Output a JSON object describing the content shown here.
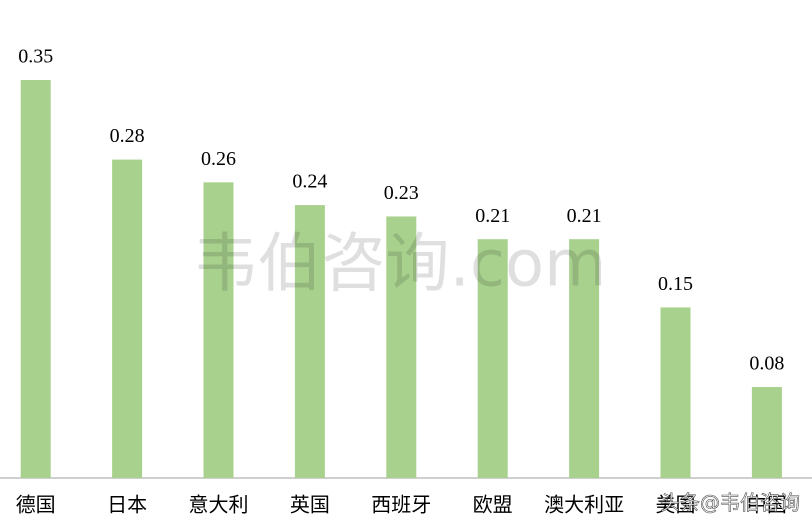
{
  "chart_data": {
    "type": "bar",
    "categories": [
      "德国",
      "日本",
      "意大利",
      "英国",
      "西班牙",
      "欧盟",
      "澳大利亚",
      "美国",
      "中国"
    ],
    "values": [
      0.35,
      0.28,
      0.26,
      0.24,
      0.23,
      0.21,
      0.21,
      0.15,
      0.08
    ],
    "color": "#a9d18e",
    "ylim": [
      0,
      0.35
    ],
    "grid": false,
    "watermarks": [
      "韦伯咨询.com",
      "头条@韦伯咨询"
    ]
  }
}
